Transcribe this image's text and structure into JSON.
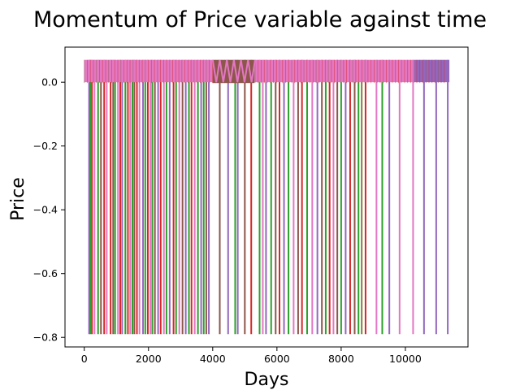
{
  "chart_data": {
    "type": "line",
    "title": "Momentum of Price variable against time",
    "xlabel": "Days",
    "ylabel": "Price",
    "xlim": [
      -600,
      11950
    ],
    "ylim": [
      -0.83,
      0.11
    ],
    "xticks": [
      0,
      2000,
      4000,
      6000,
      8000,
      10000
    ],
    "xtick_labels": [
      "0",
      "2000",
      "4000",
      "6000",
      "8000",
      "10000"
    ],
    "yticks": [
      0.0,
      -0.2,
      -0.4,
      -0.6,
      -0.8
    ],
    "ytick_labels": [
      "0.0",
      "−0.2",
      "−0.4",
      "−0.6",
      "−0.8"
    ],
    "grid": false,
    "legend": false,
    "series_style": "many overlapping series, each dropping from ~0.07 to ~-0.79 at a sell day",
    "top_level": 0.07,
    "dip_level": -0.79,
    "colors": {
      "purple": "#9467bd",
      "brown": "#8c564b",
      "pink": "#e377c2",
      "green": "#2ca02c",
      "red": "#d62728",
      "olive": "#7f7f3b"
    },
    "spikes": [
      {
        "x": 150,
        "color": "purple"
      },
      {
        "x": 190,
        "color": "green"
      },
      {
        "x": 240,
        "color": "red"
      },
      {
        "x": 320,
        "color": "pink"
      },
      {
        "x": 430,
        "color": "green"
      },
      {
        "x": 520,
        "color": "brown"
      },
      {
        "x": 620,
        "color": "red"
      },
      {
        "x": 700,
        "color": "pink"
      },
      {
        "x": 820,
        "color": "red"
      },
      {
        "x": 900,
        "color": "brown"
      },
      {
        "x": 960,
        "color": "green"
      },
      {
        "x": 1050,
        "color": "pink"
      },
      {
        "x": 1120,
        "color": "red"
      },
      {
        "x": 1180,
        "color": "purple"
      },
      {
        "x": 1280,
        "color": "green"
      },
      {
        "x": 1360,
        "color": "red"
      },
      {
        "x": 1430,
        "color": "pink"
      },
      {
        "x": 1500,
        "color": "green"
      },
      {
        "x": 1560,
        "color": "brown"
      },
      {
        "x": 1640,
        "color": "red"
      },
      {
        "x": 1720,
        "color": "pink"
      },
      {
        "x": 1830,
        "color": "purple"
      },
      {
        "x": 1900,
        "color": "green"
      },
      {
        "x": 1980,
        "color": "red"
      },
      {
        "x": 2060,
        "color": "pink"
      },
      {
        "x": 2120,
        "color": "green"
      },
      {
        "x": 2200,
        "color": "brown"
      },
      {
        "x": 2300,
        "color": "purple"
      },
      {
        "x": 2380,
        "color": "red"
      },
      {
        "x": 2480,
        "color": "pink"
      },
      {
        "x": 2560,
        "color": "green"
      },
      {
        "x": 2660,
        "color": "purple"
      },
      {
        "x": 2780,
        "color": "red"
      },
      {
        "x": 2860,
        "color": "green"
      },
      {
        "x": 2960,
        "color": "pink"
      },
      {
        "x": 3060,
        "color": "brown"
      },
      {
        "x": 3160,
        "color": "purple"
      },
      {
        "x": 3260,
        "color": "green"
      },
      {
        "x": 3340,
        "color": "red"
      },
      {
        "x": 3440,
        "color": "pink"
      },
      {
        "x": 3540,
        "color": "green"
      },
      {
        "x": 3640,
        "color": "purple"
      },
      {
        "x": 3720,
        "color": "green"
      },
      {
        "x": 3800,
        "color": "brown"
      },
      {
        "x": 3880,
        "color": "purple"
      },
      {
        "x": 4220,
        "color": "brown"
      },
      {
        "x": 4480,
        "color": "purple"
      },
      {
        "x": 4700,
        "color": "green"
      },
      {
        "x": 4780,
        "color": "purple"
      },
      {
        "x": 5000,
        "color": "brown"
      },
      {
        "x": 5200,
        "color": "red"
      },
      {
        "x": 5460,
        "color": "green"
      },
      {
        "x": 5560,
        "color": "pink"
      },
      {
        "x": 5660,
        "color": "purple"
      },
      {
        "x": 5820,
        "color": "green"
      },
      {
        "x": 5960,
        "color": "brown"
      },
      {
        "x": 6080,
        "color": "red"
      },
      {
        "x": 6220,
        "color": "purple"
      },
      {
        "x": 6360,
        "color": "green"
      },
      {
        "x": 6520,
        "color": "pink"
      },
      {
        "x": 6660,
        "color": "brown"
      },
      {
        "x": 6780,
        "color": "red"
      },
      {
        "x": 6940,
        "color": "green"
      },
      {
        "x": 7100,
        "color": "pink"
      },
      {
        "x": 7260,
        "color": "purple"
      },
      {
        "x": 7400,
        "color": "brown"
      },
      {
        "x": 7520,
        "color": "green"
      },
      {
        "x": 7640,
        "color": "red"
      },
      {
        "x": 7760,
        "color": "pink"
      },
      {
        "x": 7880,
        "color": "brown"
      },
      {
        "x": 8000,
        "color": "green"
      },
      {
        "x": 8140,
        "color": "purple"
      },
      {
        "x": 8280,
        "color": "red"
      },
      {
        "x": 8420,
        "color": "brown"
      },
      {
        "x": 8540,
        "color": "green"
      },
      {
        "x": 8640,
        "color": "olive"
      },
      {
        "x": 8760,
        "color": "red"
      },
      {
        "x": 9100,
        "color": "pink"
      },
      {
        "x": 9280,
        "color": "green"
      },
      {
        "x": 9500,
        "color": "purple"
      },
      {
        "x": 9820,
        "color": "pink"
      },
      {
        "x": 10240,
        "color": "pink"
      },
      {
        "x": 10580,
        "color": "purple"
      },
      {
        "x": 10960,
        "color": "purple"
      },
      {
        "x": 11320,
        "color": "purple"
      }
    ]
  }
}
